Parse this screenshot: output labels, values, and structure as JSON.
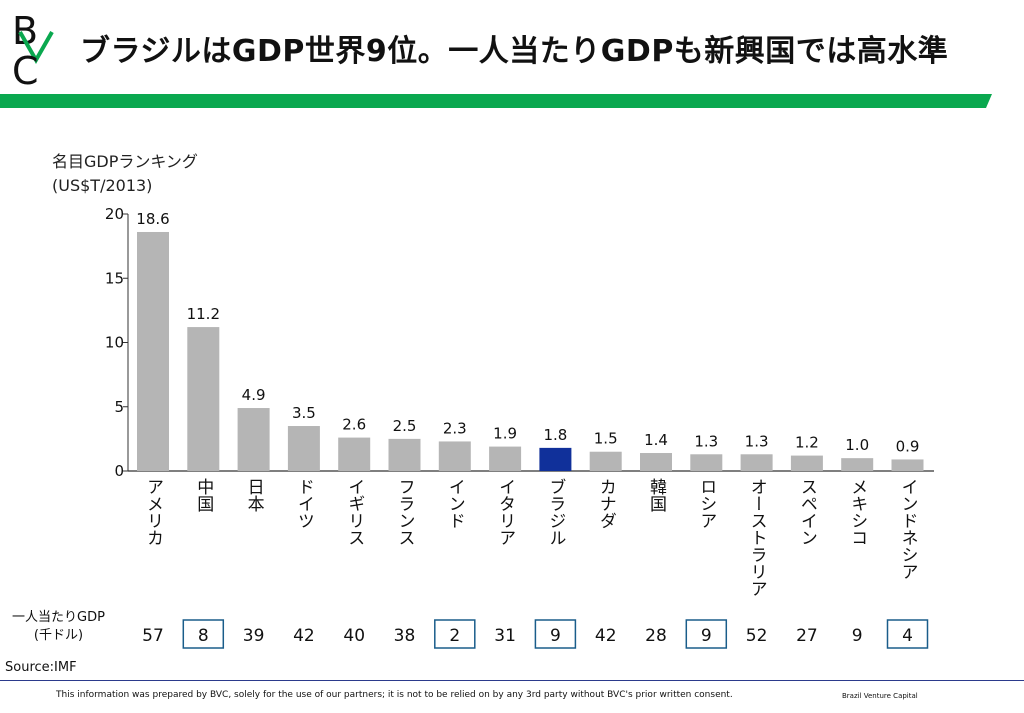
{
  "logo": {
    "letters": [
      "B",
      "C"
    ]
  },
  "header": {
    "title": "ブラジルはGDP世界9位。一人当たりGDPも新興国では高水準"
  },
  "colors": {
    "accent_green": "#0aa84f",
    "bar_default": "#b5b5b5",
    "bar_highlight": "#10309a",
    "box_border": "#1a5d8a"
  },
  "chart_data": {
    "type": "bar",
    "ylabel_lines": [
      "名目GDPランキング",
      "(US$T/2013)"
    ],
    "categories": [
      "アメリカ",
      "中国",
      "日本",
      "ドイツ",
      "イギリス",
      "フランス",
      "インド",
      "イタリア",
      "ブラジル",
      "カナダ",
      "韓国",
      "ロシア",
      "オーストラリア",
      "スペイン",
      "メキシコ",
      "インドネシア"
    ],
    "values": [
      18.6,
      11.2,
      4.9,
      3.5,
      2.6,
      2.5,
      2.3,
      1.9,
      1.8,
      1.5,
      1.4,
      1.3,
      1.3,
      1.2,
      1.0,
      0.9
    ],
    "value_labels": [
      "18.6",
      "11.2",
      "4.9",
      "3.5",
      "2.6",
      "2.5",
      "2.3",
      "1.9",
      "1.8",
      "1.5",
      "1.4",
      "1.3",
      "1.3",
      "1.2",
      "1.0",
      "0.9"
    ],
    "ylim": [
      0,
      20
    ],
    "yticks": [
      0,
      5,
      10,
      15,
      20
    ],
    "highlight_category": "ブラジル",
    "per_capita": {
      "label_lines": [
        "一人当たりGDP",
        "(千ドル)"
      ],
      "values": [
        "57",
        "8",
        "39",
        "42",
        "40",
        "38",
        "2",
        "31",
        "9",
        "42",
        "28",
        "9",
        "52",
        "27",
        "9",
        "4"
      ],
      "boxed": [
        false,
        true,
        false,
        false,
        false,
        false,
        true,
        false,
        true,
        false,
        false,
        true,
        false,
        false,
        false,
        true
      ]
    }
  },
  "footer": {
    "source": "Source:IMF",
    "disclaimer": "This information was prepared by BVC, solely for the use of our partners; it is not to be relied on by any 3rd party without BVC's prior written consent.",
    "brand": "Brazil Venture Capital"
  }
}
